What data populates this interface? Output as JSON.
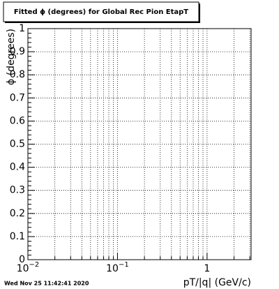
{
  "chart_data": {
    "type": "empty",
    "title": "Fitted ϕ (degrees) for Global Rec Pion EtapT",
    "x_label": "pT/|q| (GeV/c)",
    "y_label": "ϕ (degrees)",
    "timestamp": "Wed Nov 25 11:42:41 2020",
    "x_log": true,
    "xlim": [
      0.01,
      3.1
    ],
    "xticks": [
      {
        "value": 0.01,
        "label": "10",
        "exponent": "−2"
      },
      {
        "value": 0.1,
        "label": "10",
        "exponent": "−1"
      },
      1
    ],
    "ylim": [
      0,
      1
    ],
    "yticks": [
      0,
      0.1,
      0.2,
      0.3,
      0.4,
      0.5,
      0.6,
      0.7,
      0.8,
      0.9,
      1
    ],
    "grid": true
  }
}
